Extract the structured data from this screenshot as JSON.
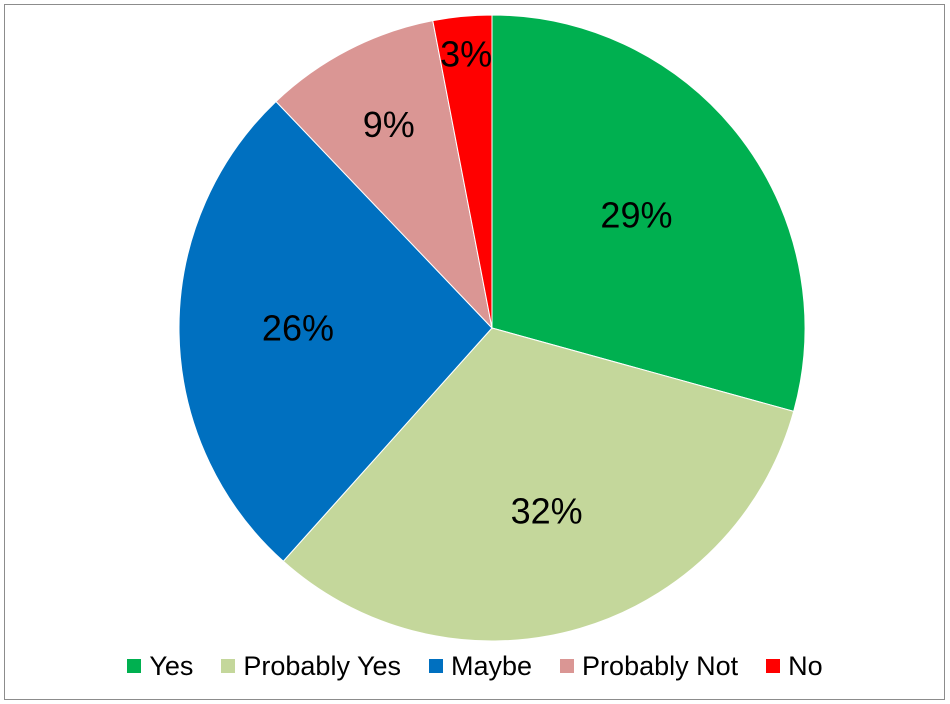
{
  "chart_data": {
    "type": "pie",
    "title": "",
    "categories": [
      "Yes",
      "Probably Yes",
      "Maybe",
      "Probably Not",
      "No"
    ],
    "values": [
      29,
      32,
      26,
      9,
      3
    ],
    "data_labels": [
      "29%",
      "32%",
      "26%",
      "9%",
      "3%"
    ],
    "colors": [
      "#00b050",
      "#c4d79b",
      "#0070c0",
      "#da9694",
      "#ff0000"
    ],
    "start_angle_deg": 0,
    "direction": "clockwise",
    "legend_position": "bottom"
  }
}
